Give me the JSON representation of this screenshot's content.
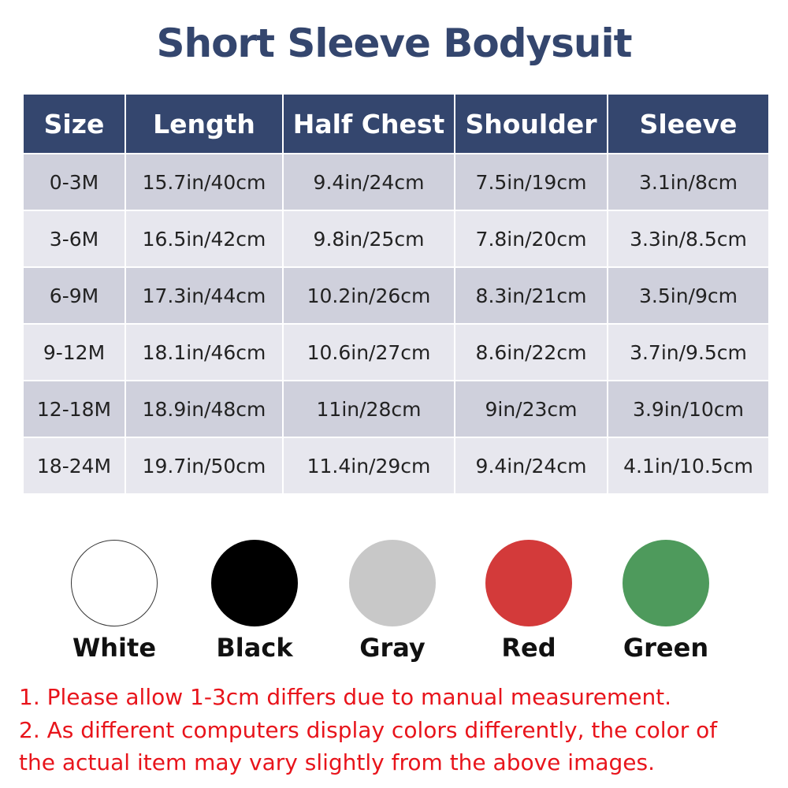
{
  "title": "Short Sleeve Bodysuit",
  "table": {
    "headers": [
      "Size",
      "Length",
      "Half Chest",
      "Shoulder",
      "Sleeve"
    ],
    "rows": [
      [
        "0-3M",
        "15.7in/40cm",
        "9.4in/24cm",
        "7.5in/19cm",
        "3.1in/8cm"
      ],
      [
        "3-6M",
        "16.5in/42cm",
        "9.8in/25cm",
        "7.8in/20cm",
        "3.3in/8.5cm"
      ],
      [
        "6-9M",
        "17.3in/44cm",
        "10.2in/26cm",
        "8.3in/21cm",
        "3.5in/9cm"
      ],
      [
        "9-12M",
        "18.1in/46cm",
        "10.6in/27cm",
        "8.6in/22cm",
        "3.7in/9.5cm"
      ],
      [
        "12-18M",
        "18.9in/48cm",
        "11in/28cm",
        "9in/23cm",
        "3.9in/10cm"
      ],
      [
        "18-24M",
        "19.7in/50cm",
        "11.4in/29cm",
        "9.4in/24cm",
        "4.1in/10.5cm"
      ]
    ]
  },
  "colors": [
    {
      "label": "White",
      "hex": "#ffffff"
    },
    {
      "label": "Black",
      "hex": "#000000"
    },
    {
      "label": "Gray",
      "hex": "#c8c8c8"
    },
    {
      "label": "Red",
      "hex": "#d33a3a"
    },
    {
      "label": "Green",
      "hex": "#4e9a5c"
    }
  ],
  "notes": [
    "1. Please allow 1-3cm differs due to manual measurement.",
    "2. As different computers display colors differently, the color of",
    "the actual item may vary slightly from the above images."
  ]
}
